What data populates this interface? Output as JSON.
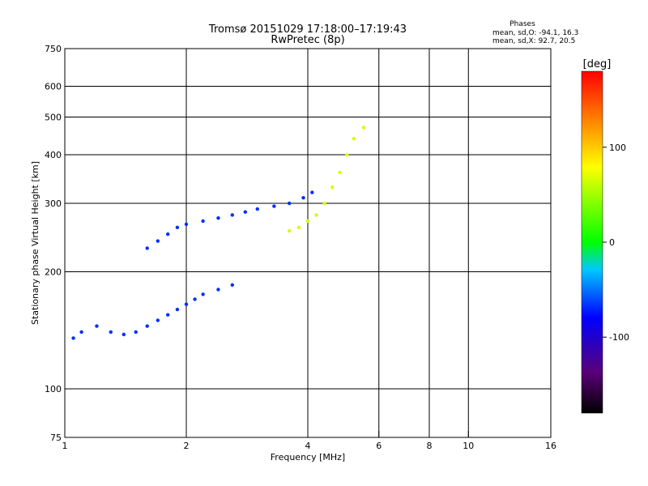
{
  "chart_data": {
    "type": "scatter",
    "title": "Tromsø 20151029 17:18:00–17:19:43",
    "subtitle": "RwPretec (8p)",
    "xlabel": "Frequency [MHz]",
    "ylabel": "Stationary phase Virtual Height [km]",
    "x_scale": "log",
    "y_scale": "log",
    "xlim": [
      1,
      16
    ],
    "ylim": [
      75,
      750
    ],
    "x_ticks": [
      1,
      2,
      4,
      6,
      8,
      10,
      16
    ],
    "y_ticks": [
      75,
      100,
      200,
      300,
      400,
      500,
      600,
      750
    ],
    "x_grid": [
      2,
      4,
      6,
      8,
      10
    ],
    "y_grid": [
      100,
      200,
      300,
      400,
      500,
      600
    ],
    "grid": true,
    "stats": {
      "header": "Phases",
      "line_o": "mean, sd,O: -94.1, 16.3",
      "line_x": "mean, sd,X:  92.7, 20.5"
    },
    "colorbar": {
      "label": "[deg]",
      "ticks": [
        -100,
        0,
        100
      ],
      "range": [
        -180,
        180
      ]
    },
    "series": [
      {
        "name": "O-mode echoes (low-frequency trace)",
        "phase_deg": -100,
        "points": [
          [
            1.05,
            135
          ],
          [
            1.1,
            140
          ],
          [
            1.2,
            145
          ],
          [
            1.3,
            140
          ],
          [
            1.4,
            138
          ],
          [
            1.5,
            140
          ],
          [
            1.6,
            145
          ],
          [
            1.7,
            150
          ],
          [
            1.8,
            155
          ],
          [
            1.9,
            160
          ],
          [
            2.0,
            165
          ],
          [
            2.1,
            170
          ],
          [
            2.2,
            175
          ],
          [
            2.4,
            180
          ],
          [
            2.6,
            185
          ]
        ]
      },
      {
        "name": "O-mode echoes (F-layer trace)",
        "phase_deg": -100,
        "points": [
          [
            1.6,
            230
          ],
          [
            1.7,
            240
          ],
          [
            1.8,
            250
          ],
          [
            1.9,
            260
          ],
          [
            2.0,
            265
          ],
          [
            2.2,
            270
          ],
          [
            2.4,
            275
          ],
          [
            2.6,
            280
          ],
          [
            2.8,
            285
          ],
          [
            3.0,
            290
          ],
          [
            3.3,
            295
          ],
          [
            3.6,
            300
          ],
          [
            3.9,
            310
          ],
          [
            4.1,
            320
          ]
        ]
      },
      {
        "name": "X-mode echoes",
        "phase_deg": 95,
        "points": [
          [
            3.6,
            255
          ],
          [
            3.8,
            260
          ],
          [
            4.0,
            270
          ],
          [
            4.2,
            280
          ],
          [
            4.4,
            300
          ],
          [
            4.6,
            330
          ],
          [
            4.8,
            360
          ],
          [
            5.0,
            400
          ],
          [
            5.2,
            440
          ],
          [
            5.5,
            470
          ]
        ]
      }
    ]
  }
}
